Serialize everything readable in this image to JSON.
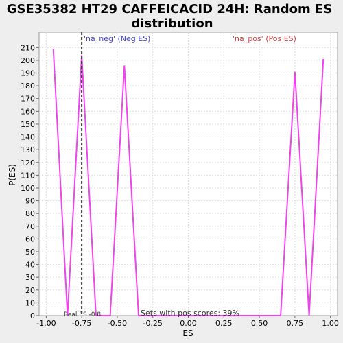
{
  "chart_data": {
    "type": "line",
    "title_line1": "GSE35382 HT29 CAFFEICACID 24H: Random ES",
    "title_line2": "distribution",
    "xlabel": "ES",
    "ylabel": "P(ES)",
    "xlim": [
      -1.05,
      1.05
    ],
    "ylim": [
      0,
      222
    ],
    "x_ticks": [
      -1.0,
      -0.75,
      -0.5,
      -0.25,
      0.0,
      0.25,
      0.5,
      0.75,
      1.0
    ],
    "x_tick_labels": [
      "-1.00",
      "-0.75",
      "-0.50",
      "-0.25",
      "0.00",
      "0.25",
      "0.50",
      "0.75",
      "1.00"
    ],
    "y_ticks": [
      0,
      10,
      20,
      30,
      40,
      50,
      60,
      70,
      80,
      90,
      100,
      110,
      120,
      130,
      140,
      150,
      160,
      170,
      180,
      190,
      200,
      210
    ],
    "grid": true,
    "series": [
      {
        "color": "#ee44ee",
        "x": [
          -0.95,
          -0.85,
          -0.75,
          -0.65,
          -0.55,
          -0.45,
          -0.35,
          -0.25,
          -0.15,
          -0.05,
          0.05,
          0.15,
          0.25,
          0.35,
          0.45,
          0.55,
          0.65,
          0.75,
          0.85,
          0.95
        ],
        "y": [
          209,
          0,
          204,
          0,
          0,
          196,
          0,
          0,
          0,
          0,
          0,
          0,
          0,
          0,
          0,
          0,
          0,
          191,
          0,
          201
        ]
      }
    ],
    "real_es": -0.75,
    "real_es_label": "Real ES -0.8",
    "legend_neg": "'na_neg' (Neg ES)",
    "legend_pos": "'na_pos' (Pos ES)",
    "annotation": "Sets with pos scores: 39%"
  }
}
